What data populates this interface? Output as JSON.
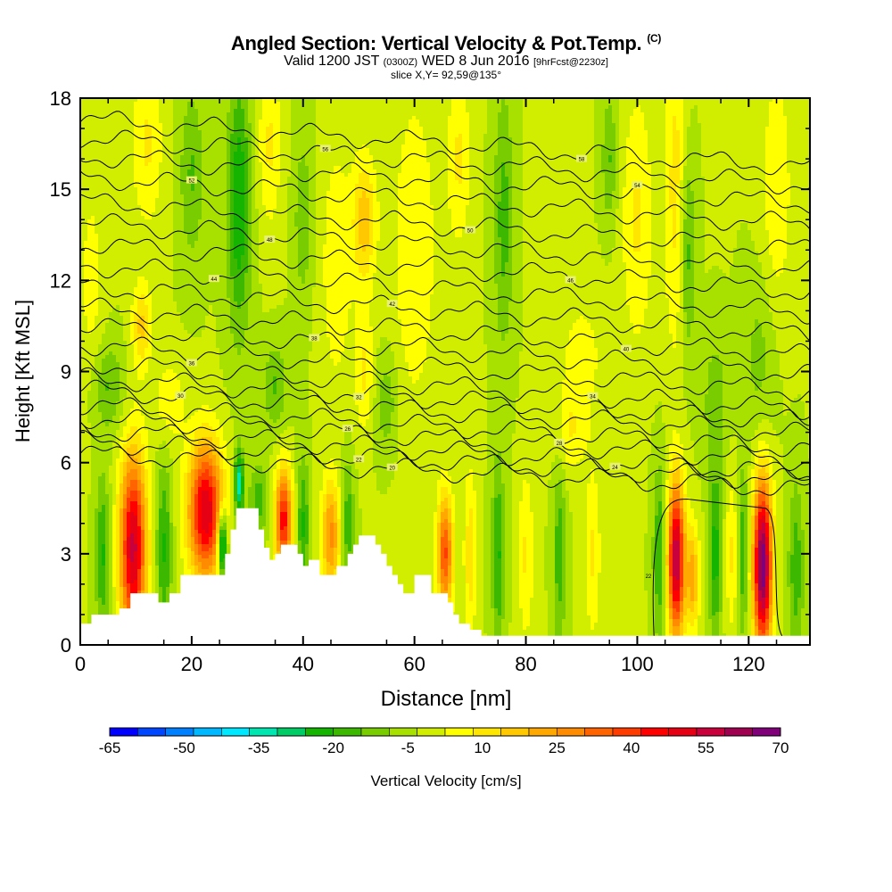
{
  "header": {
    "title": "Angled Section: Vertical Velocity & Pot.Temp.",
    "title_suffix": "(C)",
    "valid_prefix": "Valid 1200 JST",
    "valid_zulu": "(0300Z)",
    "valid_date": "WED 8 Jun 2016",
    "forecast": "[9hrFcst@2230z]",
    "slice": "slice X,Y= 92,59@135°"
  },
  "chart_data": {
    "type": "heatmap",
    "xlabel": "Distance [nm]",
    "ylabel": "Height [Kft MSL]",
    "xlim": [
      0,
      131
    ],
    "ylim": [
      0,
      18
    ],
    "x_ticks": [
      "0",
      "20",
      "40",
      "60",
      "80",
      "100",
      "120"
    ],
    "y_ticks": [
      "0",
      "3",
      "6",
      "9",
      "12",
      "15",
      "18"
    ],
    "colorbar": {
      "label": "Vertical Velocity [cm/s]",
      "min": -65,
      "max": 70,
      "tick_labels": [
        "-65",
        "-50",
        "-35",
        "-20",
        "-5",
        "10",
        "25",
        "40",
        "55",
        "70"
      ],
      "colors": [
        "#0000ff",
        "#0046ff",
        "#0080ff",
        "#00b8ff",
        "#00e8ff",
        "#00e6b0",
        "#00cc66",
        "#14b400",
        "#3cb800",
        "#78cc00",
        "#a8e000",
        "#d2ee00",
        "#ffff00",
        "#ffe600",
        "#ffc800",
        "#ffa800",
        "#ff8c00",
        "#ff6400",
        "#ff3c00",
        "#ff0000",
        "#e60014",
        "#c8003c",
        "#a00050",
        "#7f0078"
      ]
    },
    "background_value": -3,
    "terrain_profile": [
      [
        0,
        0.7
      ],
      [
        2,
        1.0
      ],
      [
        7,
        1.2
      ],
      [
        9,
        1.7
      ],
      [
        13,
        1.7
      ],
      [
        14,
        1.4
      ],
      [
        16,
        1.7
      ],
      [
        18,
        2.3
      ],
      [
        25,
        2.3
      ],
      [
        26,
        3.0
      ],
      [
        27,
        3.8
      ],
      [
        28,
        4.5
      ],
      [
        31,
        4.5
      ],
      [
        32,
        3.8
      ],
      [
        33,
        3.2
      ],
      [
        34,
        2.8
      ],
      [
        35,
        3.0
      ],
      [
        36,
        3.3
      ],
      [
        38,
        3.3
      ],
      [
        39,
        3.0
      ],
      [
        40,
        2.6
      ],
      [
        41,
        2.8
      ],
      [
        43,
        2.3
      ],
      [
        45,
        2.3
      ],
      [
        46,
        2.6
      ],
      [
        48,
        3.0
      ],
      [
        49,
        3.3
      ],
      [
        50,
        3.6
      ],
      [
        52,
        3.6
      ],
      [
        53,
        3.3
      ],
      [
        54,
        3.0
      ],
      [
        55,
        2.6
      ],
      [
        56,
        2.3
      ],
      [
        57,
        2.0
      ],
      [
        58,
        1.7
      ],
      [
        60,
        2.3
      ],
      [
        62,
        2.3
      ],
      [
        63,
        1.7
      ],
      [
        66,
        1.4
      ],
      [
        67,
        1.0
      ],
      [
        68,
        0.7
      ],
      [
        70,
        0.5
      ],
      [
        72,
        0.3
      ],
      [
        131,
        0.3
      ]
    ],
    "anomalies": [
      {
        "x": 9.5,
        "y": 3.2,
        "sx": 1.7,
        "sy": 2.2,
        "v": 58
      },
      {
        "x": 22.5,
        "y": 4.4,
        "sx": 2.2,
        "sy": 1.6,
        "v": 56
      },
      {
        "x": 36.5,
        "y": 4.1,
        "sx": 1.1,
        "sy": 1.2,
        "v": 48
      },
      {
        "x": 45,
        "y": 3.6,
        "sx": 1.2,
        "sy": 1.3,
        "v": 30
      },
      {
        "x": 65.5,
        "y": 3.0,
        "sx": 1.0,
        "sy": 1.4,
        "v": 40
      },
      {
        "x": 107,
        "y": 2.8,
        "sx": 1.1,
        "sy": 1.8,
        "v": 62
      },
      {
        "x": 110,
        "y": 2.2,
        "sx": 0.8,
        "sy": 1.2,
        "v": 25
      },
      {
        "x": 122.5,
        "y": 2.6,
        "sx": 1.2,
        "sy": 2.0,
        "v": 72
      },
      {
        "x": 25.5,
        "y": 3.3,
        "sx": 0.6,
        "sy": 0.8,
        "v": -42
      },
      {
        "x": 28.5,
        "y": 5.3,
        "sx": 0.6,
        "sy": 0.8,
        "v": -32
      },
      {
        "x": 4,
        "y": 3.0,
        "sx": 0.9,
        "sy": 1.8,
        "v": -18
      },
      {
        "x": 15,
        "y": 3.2,
        "sx": 1.0,
        "sy": 2.0,
        "v": -18
      },
      {
        "x": 32,
        "y": 4.8,
        "sx": 1.2,
        "sy": 0.8,
        "v": -15
      },
      {
        "x": 40,
        "y": 4.0,
        "sx": 0.8,
        "sy": 1.5,
        "v": -18
      },
      {
        "x": 48,
        "y": 4.0,
        "sx": 0.8,
        "sy": 1.5,
        "v": -16
      },
      {
        "x": 75,
        "y": 3.0,
        "sx": 0.8,
        "sy": 2.2,
        "v": -18
      },
      {
        "x": 86,
        "y": 3.0,
        "sx": 0.8,
        "sy": 2.2,
        "v": -15
      },
      {
        "x": 104,
        "y": 3.0,
        "sx": 0.8,
        "sy": 2.0,
        "v": -18
      },
      {
        "x": 114,
        "y": 3.0,
        "sx": 0.8,
        "sy": 2.0,
        "v": -20
      },
      {
        "x": 119,
        "y": 3.0,
        "sx": 0.7,
        "sy": 2.0,
        "v": -16
      },
      {
        "x": 128.5,
        "y": 2.5,
        "sx": 1.0,
        "sy": 2.0,
        "v": -15
      },
      {
        "x": 70,
        "y": 3.0,
        "sx": 0.8,
        "sy": 2.0,
        "v": 15
      },
      {
        "x": 80,
        "y": 3.0,
        "sx": 1.0,
        "sy": 2.0,
        "v": 12
      },
      {
        "x": 92,
        "y": 3.0,
        "sx": 1.0,
        "sy": 2.0,
        "v": 12
      },
      {
        "x": 117,
        "y": 3.0,
        "sx": 0.8,
        "sy": 1.8,
        "v": 12
      },
      {
        "x": 28.5,
        "y": 14.5,
        "sx": 1.5,
        "sy": 3.0,
        "v": -22
      },
      {
        "x": 20,
        "y": 15.5,
        "sx": 1.5,
        "sy": 2.0,
        "v": -12
      },
      {
        "x": 11,
        "y": 10.5,
        "sx": 1.2,
        "sy": 1.0,
        "v": 18
      },
      {
        "x": 12,
        "y": 16.5,
        "sx": 2.0,
        "sy": 2.0,
        "v": 12
      },
      {
        "x": 34,
        "y": 16.5,
        "sx": 1.5,
        "sy": 2.0,
        "v": 12
      },
      {
        "x": 51,
        "y": 14.0,
        "sx": 1.5,
        "sy": 1.5,
        "v": 20
      },
      {
        "x": 51,
        "y": 9.0,
        "sx": 1.2,
        "sy": 1.5,
        "v": 12
      },
      {
        "x": 46,
        "y": 12.5,
        "sx": 2.0,
        "sy": 3.0,
        "v": 10
      },
      {
        "x": 35,
        "y": 8.5,
        "sx": 1.5,
        "sy": 1.0,
        "v": -12
      },
      {
        "x": 60,
        "y": 13.0,
        "sx": 3.0,
        "sy": 4.0,
        "v": 10
      },
      {
        "x": 76,
        "y": 14.0,
        "sx": 1.2,
        "sy": 3.0,
        "v": -14
      },
      {
        "x": 95,
        "y": 16.0,
        "sx": 1.0,
        "sy": 1.5,
        "v": -12
      },
      {
        "x": 100,
        "y": 14.0,
        "sx": 2.0,
        "sy": 3.0,
        "v": 12
      },
      {
        "x": 107,
        "y": 15.0,
        "sx": 1.5,
        "sy": 4.0,
        "v": 14
      },
      {
        "x": 109,
        "y": 13.0,
        "sx": 1.0,
        "sy": 2.5,
        "v": -16
      },
      {
        "x": 114,
        "y": 8.0,
        "sx": 1.5,
        "sy": 1.5,
        "v": -10
      },
      {
        "x": 90,
        "y": 9.5,
        "sx": 3.0,
        "sy": 1.5,
        "v": 8
      },
      {
        "x": 125,
        "y": 15.0,
        "sx": 2.0,
        "sy": 3.0,
        "v": 10
      },
      {
        "x": 122,
        "y": 9.5,
        "sx": 2.0,
        "sy": 2.0,
        "v": -8
      },
      {
        "x": 2,
        "y": 12.0,
        "sx": 1.5,
        "sy": 2.5,
        "v": 8
      },
      {
        "x": 5,
        "y": 8.5,
        "sx": 2.0,
        "sy": 1.0,
        "v": -12
      },
      {
        "x": 16,
        "y": 8.0,
        "sx": 2.0,
        "sy": 1.0,
        "v": 10
      },
      {
        "x": 55,
        "y": 8.0,
        "sx": 1.5,
        "sy": 1.2,
        "v": -10
      },
      {
        "x": 68,
        "y": 16.0,
        "sx": 1.5,
        "sy": 2.0,
        "v": 12
      },
      {
        "x": 40,
        "y": 14.0,
        "sx": 1.2,
        "sy": 2.0,
        "v": -10
      },
      {
        "x": 88,
        "y": 7.0,
        "sx": 2.0,
        "sy": 1.0,
        "v": 10
      }
    ],
    "isentropes": [
      {
        "label": "20",
        "y": 6.3,
        "slope": -0.009,
        "amp": 0.25,
        "labelx": 56
      },
      {
        "label": "22",
        "y": 6.7,
        "slope": -0.01,
        "amp": 0.25,
        "labelx": 50
      },
      {
        "label": "24",
        "y": 7.1,
        "slope": -0.011,
        "amp": 0.25,
        "labelx": 96
      },
      {
        "label": "26",
        "y": 7.5,
        "slope": -0.011,
        "amp": 0.25,
        "labelx": 48
      },
      {
        "label": "28",
        "y": 7.9,
        "slope": -0.011,
        "amp": 0.25,
        "labelx": 86
      },
      {
        "label": "30",
        "y": 8.4,
        "slope": -0.011,
        "amp": 0.25,
        "labelx": 18
      },
      {
        "label": "32",
        "y": 8.8,
        "slope": -0.011,
        "amp": 0.25,
        "labelx": 50
      },
      {
        "label": "34",
        "y": 9.3,
        "slope": -0.012,
        "amp": 0.25,
        "labelx": 92
      },
      {
        "label": "36",
        "y": 9.9,
        "slope": -0.012,
        "amp": 0.25,
        "labelx": 20
      },
      {
        "label": "38",
        "y": 10.5,
        "slope": -0.012,
        "amp": 0.25,
        "labelx": 42
      },
      {
        "label": "40",
        "y": 11.1,
        "slope": -0.012,
        "amp": 0.25,
        "labelx": 98
      },
      {
        "label": "42",
        "y": 11.8,
        "slope": -0.012,
        "amp": 0.25,
        "labelx": 56
      },
      {
        "label": "44",
        "y": 12.5,
        "slope": -0.012,
        "amp": 0.25,
        "labelx": 24
      },
      {
        "label": "46",
        "y": 13.2,
        "slope": -0.012,
        "amp": 0.25,
        "labelx": 88
      },
      {
        "label": "48",
        "y": 13.9,
        "slope": -0.012,
        "amp": 0.25,
        "labelx": 34
      },
      {
        "label": "50",
        "y": 14.6,
        "slope": -0.012,
        "amp": 0.25,
        "labelx": 70
      },
      {
        "label": "52",
        "y": 15.4,
        "slope": -0.012,
        "amp": 0.25,
        "labelx": 20
      },
      {
        "label": "54",
        "y": 16.1,
        "slope": -0.012,
        "amp": 0.25,
        "labelx": 100
      },
      {
        "label": "56",
        "y": 16.7,
        "slope": -0.012,
        "amp": 0.25,
        "labelx": 44
      },
      {
        "label": "58",
        "y": 17.3,
        "slope": -0.012,
        "amp": 0.25,
        "labelx": 90
      }
    ],
    "lowlevel_contours": [
      {
        "label": "22",
        "type": "bowl",
        "x0": 103,
        "x1": 126,
        "top": 4.8,
        "bottom": 0.3,
        "labelx": 102
      }
    ]
  }
}
